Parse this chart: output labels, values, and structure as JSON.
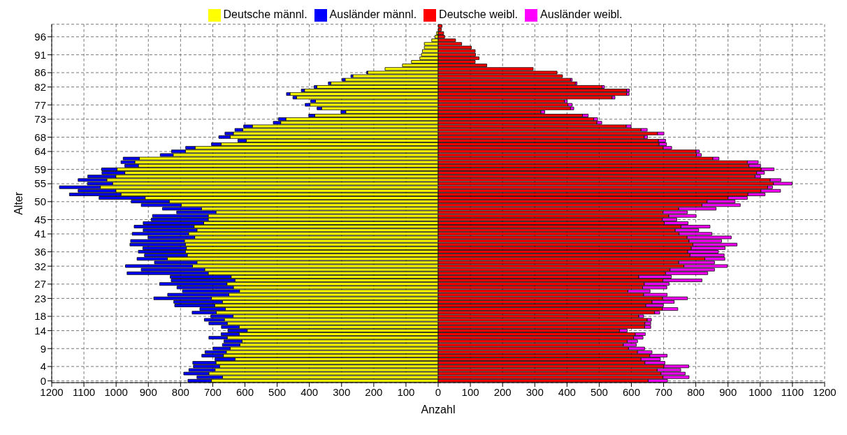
{
  "chart_data": {
    "type": "bar",
    "orientation": "horizontal",
    "stacked": true,
    "xlabel": "Anzahl",
    "ylabel": "Alter",
    "legend": "top",
    "grid": true,
    "categories": [
      null,
      null,
      null,
      "96",
      null,
      null,
      null,
      null,
      "91",
      null,
      null,
      null,
      null,
      "86",
      null,
      null,
      null,
      "82",
      null,
      null,
      null,
      null,
      "77",
      null,
      null,
      null,
      "73",
      null,
      null,
      null,
      null,
      "68",
      null,
      null,
      null,
      "64",
      null,
      null,
      null,
      null,
      "59",
      null,
      null,
      null,
      "55",
      null,
      null,
      null,
      null,
      "50",
      null,
      null,
      null,
      null,
      "45",
      null,
      null,
      null,
      "41",
      null,
      null,
      null,
      null,
      "36",
      null,
      null,
      null,
      "32",
      null,
      null,
      null,
      null,
      "27",
      null,
      null,
      null,
      "23",
      null,
      null,
      null,
      null,
      "18",
      null,
      null,
      null,
      "14",
      null,
      null,
      null,
      null,
      "9",
      null,
      null,
      null,
      null,
      "4",
      null,
      null,
      null,
      "0"
    ],
    "xlim": [
      -1200,
      1200
    ],
    "xticks": [
      {
        "value": -1200,
        "label": "1200"
      },
      {
        "value": -1100,
        "label": "1100"
      },
      {
        "value": -1000,
        "label": "1000"
      },
      {
        "value": -900,
        "label": "900"
      },
      {
        "value": -800,
        "label": "800"
      },
      {
        "value": -700,
        "label": "700"
      },
      {
        "value": -600,
        "label": "600"
      },
      {
        "value": -500,
        "label": "500"
      },
      {
        "value": -400,
        "label": "400"
      },
      {
        "value": -300,
        "label": "300"
      },
      {
        "value": -200,
        "label": "200"
      },
      {
        "value": -100,
        "label": "100"
      },
      0,
      100,
      200,
      300,
      400,
      500,
      600,
      700,
      800,
      900,
      1000,
      1100,
      1200
    ],
    "series": [
      {
        "name": "Deutsche männl.",
        "color": "#ffff00",
        "values": [
          null,
          null,
          -5,
          -10,
          -20,
          -43,
          -43,
          -49,
          -52,
          -57,
          -83,
          -111,
          -165,
          -219,
          -265,
          -289,
          -333,
          -377,
          -415,
          -460,
          -440,
          -381,
          -398,
          -362,
          -287,
          -383,
          -473,
          -489,
          -577,
          -607,
          -636,
          -646,
          -596,
          -674,
          -755,
          -785,
          -823,
          -928,
          -942,
          -931,
          -997,
          -973,
          -1001,
          -1029,
          -1011,
          -1049,
          -1001,
          -985,
          -910,
          -835,
          -798,
          -735,
          -690,
          -714,
          -714,
          -728,
          -758,
          -749,
          -775,
          -756,
          -788,
          -785,
          -782,
          -785,
          -779,
          -841,
          -749,
          -763,
          -725,
          -714,
          -643,
          -631,
          -656,
          -636,
          -617,
          -650,
          -704,
          -670,
          -694,
          -661,
          -689,
          -637,
          -664,
          -655,
          -618,
          -593,
          -618,
          -655,
          -609,
          -616,
          -646,
          -658,
          -667,
          -631,
          -690,
          -679,
          -693,
          -712,
          -670,
          -704
        ]
      },
      {
        "name": "Ausländer männl.",
        "color": "#0000ff",
        "values": [
          0,
          0,
          0,
          0,
          0,
          0,
          0,
          0,
          0,
          0,
          0,
          0,
          0,
          -3,
          -6,
          -9,
          -8,
          -8,
          -10,
          -11,
          -11,
          -15,
          -15,
          -14,
          -15,
          -19,
          -23,
          -23,
          -27,
          -24,
          -26,
          -35,
          -26,
          -30,
          -29,
          -43,
          -40,
          -50,
          -43,
          -42,
          -48,
          -71,
          -87,
          -89,
          -78,
          -127,
          -117,
          -160,
          -143,
          -118,
          -124,
          -121,
          -122,
          -173,
          -177,
          -188,
          -186,
          -167,
          -175,
          -145,
          -167,
          -172,
          -135,
          -146,
          -133,
          -94,
          -132,
          -208,
          -197,
          -252,
          -189,
          -198,
          -209,
          -175,
          -177,
          -190,
          -179,
          -151,
          -124,
          -79,
          -75,
          -69,
          -62,
          -57,
          -55,
          -60,
          -56,
          -57,
          -56,
          -54,
          -53,
          -66,
          -67,
          -62,
          -72,
          -81,
          -81,
          -78,
          -79,
          -73
        ]
      },
      {
        "name": "Deutsche weibl.",
        "color": "#ff0000",
        "values": [
          12,
          10,
          17,
          20,
          54,
          73,
          103,
          115,
          116,
          127,
          115,
          151,
          295,
          369,
          386,
          411,
          426,
          509,
          585,
          585,
          540,
          392,
          403,
          411,
          319,
          448,
          483,
          493,
          584,
          630,
          681,
          640,
          684,
          686,
          699,
          801,
          802,
          853,
          960,
          965,
          1003,
          989,
          984,
          1031,
          1041,
          1023,
          1002,
          962,
          900,
          835,
          819,
          747,
          698,
          716,
          696,
          702,
          754,
          736,
          748,
          773,
          779,
          791,
          786,
          775,
          782,
          828,
          747,
          763,
          720,
          706,
          623,
          698,
          640,
          635,
          589,
          638,
          697,
          664,
          645,
          696,
          672,
          623,
          649,
          642,
          641,
          563,
          612,
          607,
          587,
          575,
          591,
          619,
          657,
          630,
          642,
          701,
          680,
          692,
          698,
          652
        ]
      },
      {
        "name": "Ausländer weibl.",
        "color": "#ff00ff",
        "values": [
          0,
          0,
          0,
          0,
          0,
          0,
          0,
          0,
          0,
          0,
          0,
          0,
          0,
          0,
          0,
          5,
          5,
          7,
          9,
          8,
          9,
          9,
          13,
          10,
          12,
          18,
          12,
          15,
          15,
          19,
          20,
          10,
          22,
          23,
          26,
          10,
          15,
          19,
          34,
          36,
          40,
          24,
          17,
          33,
          58,
          15,
          61,
          53,
          60,
          87,
          119,
          116,
          76,
          85,
          45,
          74,
          90,
          73,
          102,
          137,
          101,
          137,
          105,
          95,
          106,
          62,
          111,
          135,
          138,
          131,
          101,
          121,
          77,
          75,
          69,
          73,
          77,
          69,
          54,
          48,
          16,
          15,
          13,
          18,
          19,
          24,
          31,
          29,
          32,
          40,
          50,
          45,
          54,
          60,
          62,
          77,
          73,
          75,
          81,
          60
        ]
      }
    ]
  }
}
